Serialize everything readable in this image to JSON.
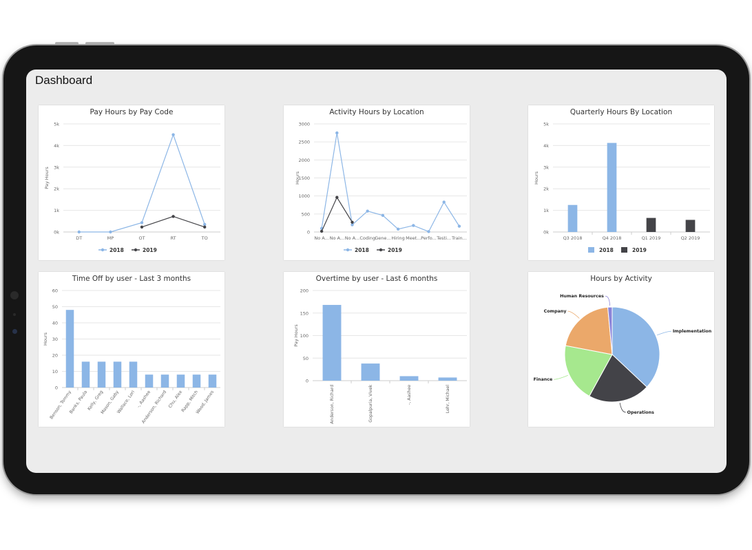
{
  "app": {
    "title": "Dashboard"
  },
  "colors": {
    "series2018": "#8cb6e6",
    "series2019": "#444448",
    "grid": "#e6e6e6",
    "axis": "#cccccc",
    "label": "#666666",
    "tablet_bezel": "#161616",
    "screen_bg": "#ececec"
  },
  "chart_data": [
    {
      "id": "pay-hours",
      "type": "line",
      "title": "Pay Hours by Pay Code",
      "ylabel": "Pay Hours",
      "xlabel": "",
      "ylim": [
        0,
        5000
      ],
      "yticks": [
        "0k",
        "1k",
        "2k",
        "3k",
        "4k",
        "5k"
      ],
      "categories": [
        "DT",
        "MP",
        "OT",
        "RT",
        "TO"
      ],
      "series": [
        {
          "name": "2018",
          "values": [
            0,
            0,
            430,
            4500,
            350
          ]
        },
        {
          "name": "2019",
          "values": [
            null,
            null,
            230,
            720,
            230
          ]
        }
      ],
      "legend": "bottom",
      "grid": true
    },
    {
      "id": "activity-hours",
      "type": "line",
      "title": "Activity Hours by Location",
      "ylabel": "Hours",
      "xlabel": "",
      "ylim": [
        0,
        3000
      ],
      "yticks": [
        "0",
        "500",
        "1000",
        "1500",
        "2000",
        "2500",
        "3000"
      ],
      "categories": [
        "No A...",
        "No A...",
        "No A...",
        "Coding",
        "Gene...",
        "Hiring",
        "Meet...",
        "Perfo...",
        "Testi...",
        "Train..."
      ],
      "series": [
        {
          "name": "2018",
          "values": [
            100,
            2750,
            200,
            580,
            460,
            80,
            180,
            10,
            830,
            160
          ]
        },
        {
          "name": "2019",
          "values": [
            20,
            960,
            270,
            null,
            null,
            null,
            null,
            null,
            null,
            null
          ]
        }
      ],
      "legend": "bottom",
      "grid": true
    },
    {
      "id": "quarterly-hours",
      "type": "bar",
      "title": "Quarterly Hours By Location",
      "ylabel": "Hours",
      "xlabel": "",
      "ylim": [
        0,
        5000
      ],
      "yticks": [
        "0k",
        "1k",
        "2k",
        "3k",
        "4k",
        "5k"
      ],
      "categories": [
        "Q3 2018",
        "Q4 2018",
        "Q1 2019",
        "Q2 2019"
      ],
      "series": [
        {
          "name": "2018",
          "values": [
            1250,
            4120,
            null,
            null
          ]
        },
        {
          "name": "2019",
          "values": [
            null,
            null,
            650,
            560
          ]
        }
      ],
      "legend": "bottom",
      "grid": true
    },
    {
      "id": "time-off",
      "type": "bar",
      "title": "Time Off by user - Last 3 months",
      "ylabel": "Hours",
      "xlabel": "",
      "ylim": [
        0,
        60
      ],
      "yticks": [
        "0",
        "10",
        "20",
        "30",
        "40",
        "50",
        "60"
      ],
      "categories": [
        "Benson, Tommy",
        "Banks, Paula",
        "Kelly, Greg",
        "Mason, Gaby",
        "Wallace, Lori",
        "-, Aashee",
        "Anderson, Richard",
        "Chu, Alex",
        "Rapp, Mitch",
        "Wood, James"
      ],
      "series": [
        {
          "name": "",
          "values": [
            48,
            16,
            16,
            16,
            16,
            8,
            8,
            8,
            8,
            8
          ]
        }
      ],
      "legend": "none",
      "grid": true
    },
    {
      "id": "overtime",
      "type": "bar",
      "title": "Overtime by user - Last 6 months",
      "ylabel": "Pay Hours",
      "xlabel": "",
      "ylim": [
        0,
        200
      ],
      "yticks": [
        "0",
        "50",
        "100",
        "150",
        "200"
      ],
      "categories": [
        "Anderson, Richard",
        "Gopalpuria, Vivek",
        "-, Aashee",
        "Lehr, Michael"
      ],
      "series": [
        {
          "name": "",
          "values": [
            168,
            38,
            10,
            7
          ]
        }
      ],
      "legend": "none",
      "grid": true
    },
    {
      "id": "hours-activity",
      "type": "pie",
      "title": "Hours by Activity",
      "slices": [
        {
          "label": "Implementation",
          "value": 37,
          "color": "#8cb6e6"
        },
        {
          "label": "Operations",
          "value": 21,
          "color": "#434348"
        },
        {
          "label": "Finance",
          "value": 20,
          "color": "#a6e88e"
        },
        {
          "label": "Company",
          "value": 20.5,
          "color": "#eba86a"
        },
        {
          "label": "Human Resources",
          "value": 1.5,
          "color": "#8b84d9"
        }
      ],
      "legend": "none"
    }
  ]
}
